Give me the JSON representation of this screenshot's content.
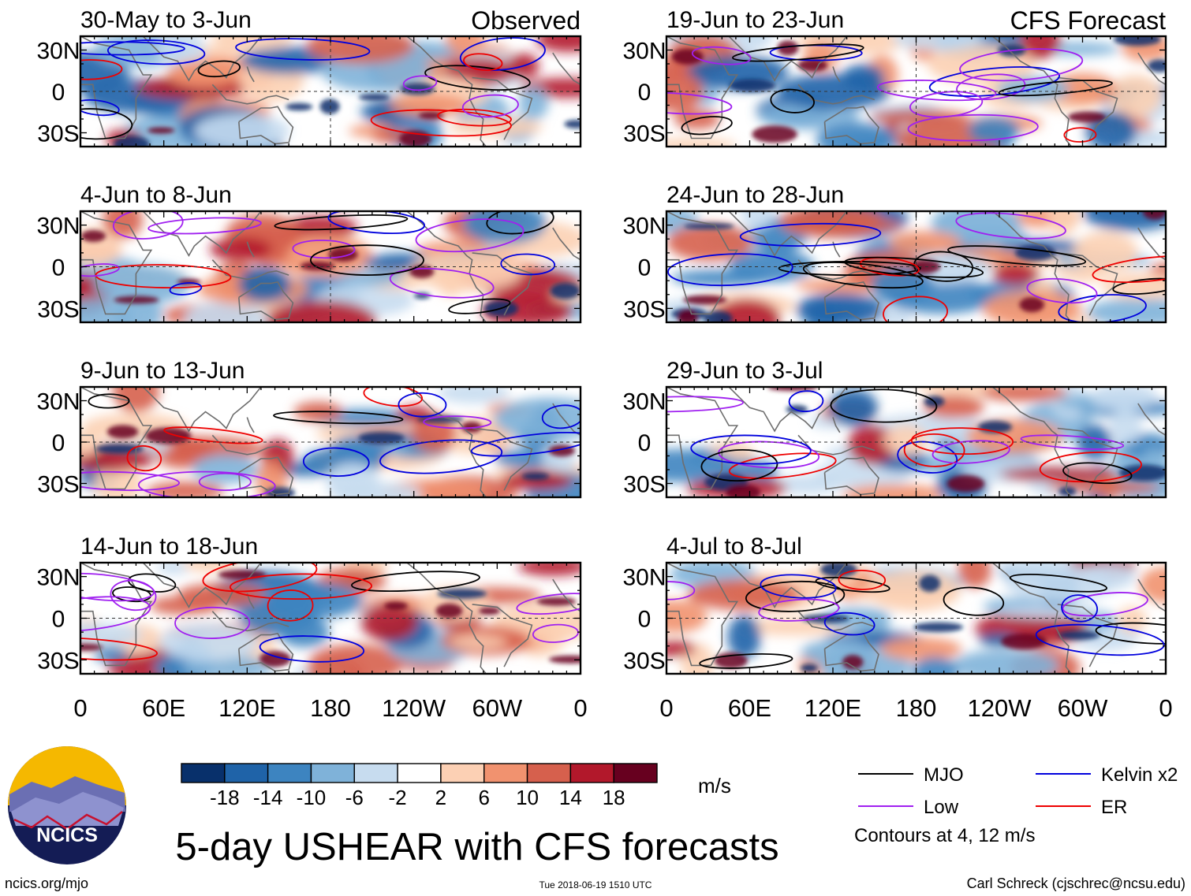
{
  "chart_data": {
    "type": "heatmap",
    "title": "5-day USHEAR with CFS forecasts",
    "units": "m/s",
    "column_headers": [
      "Observed",
      "CFS Forecast"
    ],
    "x_ticks": [
      "0",
      "60E",
      "120E",
      "180",
      "120W",
      "60W",
      "0"
    ],
    "y_ticks": [
      "30N",
      "0",
      "30S"
    ],
    "colorbar": {
      "ticks": [
        "-18",
        "-14",
        "-10",
        "-6",
        "-2",
        "2",
        "6",
        "10",
        "14",
        "18"
      ],
      "colors": [
        "#08306b",
        "#1f63a8",
        "#3d84c0",
        "#7fb2d9",
        "#c7dcef",
        "#ffffff",
        "#fcd0b4",
        "#f1926f",
        "#d6604d",
        "#b2182b",
        "#67001f"
      ]
    },
    "legend": [
      {
        "label": "MJO",
        "color": "#000000"
      },
      {
        "label": "Kelvin x2",
        "color": "#0000dd"
      },
      {
        "label": "Low",
        "color": "#a020f0"
      },
      {
        "label": "ER",
        "color": "#ee0000"
      }
    ],
    "contour_note": "Contours at 4, 12 m/s",
    "panels": [
      {
        "period": "30-May to 3-Jun",
        "column": "Observed"
      },
      {
        "period": "4-Jun to 8-Jun",
        "column": "Observed"
      },
      {
        "period": "9-Jun to 13-Jun",
        "column": "Observed"
      },
      {
        "period": "14-Jun to 18-Jun",
        "column": "Observed"
      },
      {
        "period": "19-Jun to 23-Jun",
        "column": "CFS Forecast"
      },
      {
        "period": "24-Jun to 28-Jun",
        "column": "CFS Forecast"
      },
      {
        "period": "29-Jun to 3-Jul",
        "column": "CFS Forecast"
      },
      {
        "period": "4-Jul to 8-Jul",
        "column": "CFS Forecast"
      }
    ]
  },
  "footer": {
    "logo_text": "NCICS",
    "url": "ncics.org/mjo",
    "timestamp": "Tue 2018-06-19 1510 UTC",
    "author": "Carl Schreck (cjschrec@ncsu.edu)"
  }
}
